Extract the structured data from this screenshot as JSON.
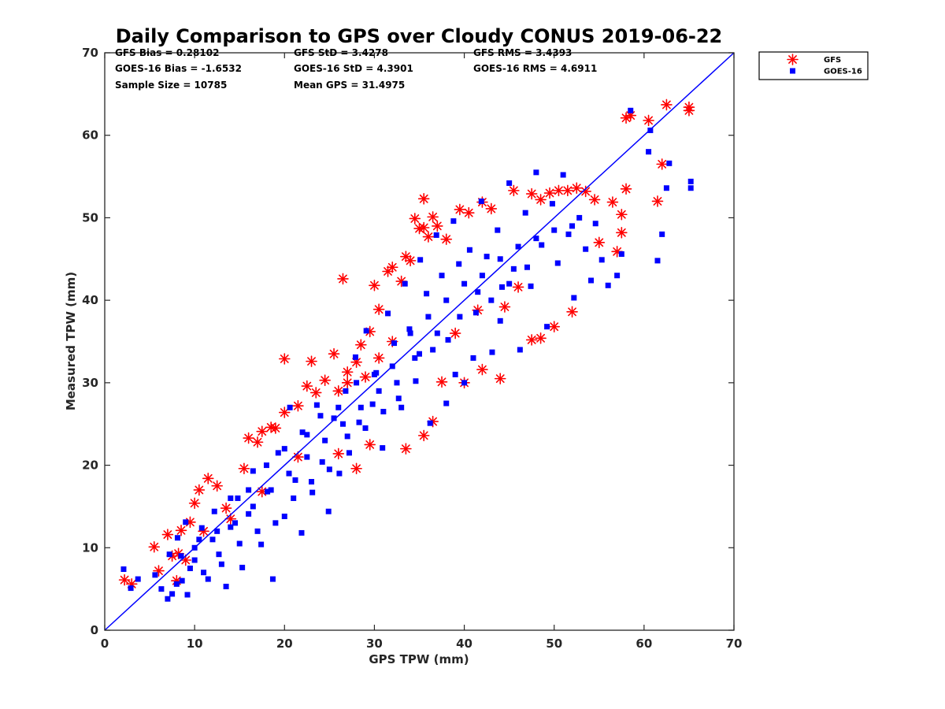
{
  "chart_data": {
    "type": "scatter",
    "title": "Daily Comparison to GPS over Cloudy CONUS 2019-06-22",
    "xlabel": "GPS TPW (mm)",
    "ylabel": "Measured TPW (mm)",
    "xlim": [
      0,
      70
    ],
    "ylim": [
      0,
      70
    ],
    "xticks": [
      0,
      10,
      20,
      30,
      40,
      50,
      60,
      70
    ],
    "yticks": [
      0,
      10,
      20,
      30,
      40,
      50,
      60,
      70
    ],
    "xtick_labels": [
      "0",
      "10",
      "20",
      "30",
      "40",
      "50",
      "60",
      "70"
    ],
    "ytick_labels": [
      "0",
      "10",
      "20",
      "30",
      "40",
      "50",
      "60",
      "70"
    ],
    "grid": false,
    "legend_position": "outside-top-right",
    "reference_line": {
      "x": [
        0,
        70
      ],
      "y": [
        0,
        70
      ],
      "color": "#0000ff"
    },
    "stats": [
      "GFS Bias = 0.28102",
      "GFS StD = 3.4278",
      "GFS RMS = 3.4393",
      "GOES-16 Bias = -1.6532",
      "GOES-16 StD = 4.3901",
      "GOES-16 RMS = 4.6911",
      "Sample Size = 10785",
      "Mean GPS = 31.4975"
    ],
    "series": [
      {
        "name": "GFS",
        "marker": "asterisk",
        "color": "#ff0000",
        "points": [
          [
            2.2,
            6.1
          ],
          [
            3.0,
            5.6
          ],
          [
            5.5,
            10.1
          ],
          [
            6.0,
            7.2
          ],
          [
            7.0,
            11.6
          ],
          [
            7.5,
            9.0
          ],
          [
            8.2,
            9.3
          ],
          [
            8.5,
            12.1
          ],
          [
            10.0,
            15.4
          ],
          [
            10.5,
            17.0
          ],
          [
            11.5,
            18.4
          ],
          [
            12.5,
            17.5
          ],
          [
            9.5,
            13.1
          ],
          [
            13.5,
            14.8
          ],
          [
            15.5,
            19.6
          ],
          [
            16.0,
            23.3
          ],
          [
            17.5,
            24.1
          ],
          [
            18.5,
            24.6
          ],
          [
            19.0,
            24.5
          ],
          [
            17.0,
            22.8
          ],
          [
            20.0,
            26.4
          ],
          [
            20.0,
            32.9
          ],
          [
            21.5,
            27.2
          ],
          [
            22.5,
            29.6
          ],
          [
            23.0,
            32.6
          ],
          [
            23.5,
            28.8
          ],
          [
            24.5,
            30.3
          ],
          [
            25.5,
            33.5
          ],
          [
            26.0,
            29.0
          ],
          [
            27.0,
            31.3
          ],
          [
            28.0,
            32.5
          ],
          [
            28.5,
            34.6
          ],
          [
            29.0,
            30.7
          ],
          [
            26.5,
            42.6
          ],
          [
            29.5,
            36.2
          ],
          [
            30.0,
            41.8
          ],
          [
            30.5,
            38.9
          ],
          [
            31.5,
            43.5
          ],
          [
            32.0,
            44.0
          ],
          [
            33.0,
            42.3
          ],
          [
            34.0,
            44.8
          ],
          [
            33.5,
            45.3
          ],
          [
            35.0,
            48.7
          ],
          [
            34.5,
            49.9
          ],
          [
            35.5,
            48.8
          ],
          [
            35.5,
            52.3
          ],
          [
            36.0,
            47.7
          ],
          [
            36.5,
            50.1
          ],
          [
            37.0,
            49.0
          ],
          [
            38.0,
            47.4
          ],
          [
            39.5,
            51.0
          ],
          [
            40.5,
            50.6
          ],
          [
            42.0,
            51.9
          ],
          [
            43.0,
            51.1
          ],
          [
            45.5,
            53.3
          ],
          [
            47.5,
            52.9
          ],
          [
            48.5,
            52.2
          ],
          [
            49.5,
            53.0
          ],
          [
            50.5,
            53.3
          ],
          [
            51.5,
            53.3
          ],
          [
            52.5,
            53.6
          ],
          [
            53.5,
            53.2
          ],
          [
            54.5,
            52.2
          ],
          [
            55.0,
            47.0
          ],
          [
            56.5,
            51.9
          ],
          [
            57.5,
            50.4
          ],
          [
            57.5,
            48.2
          ],
          [
            57.0,
            45.9
          ],
          [
            58.0,
            53.5
          ],
          [
            58.0,
            62.1
          ],
          [
            58.5,
            62.4
          ],
          [
            60.5,
            61.8
          ],
          [
            61.5,
            52.0
          ],
          [
            62.0,
            56.5
          ],
          [
            62.5,
            63.7
          ],
          [
            65.0,
            63.0
          ],
          [
            65.0,
            63.4
          ],
          [
            52.0,
            38.6
          ],
          [
            48.5,
            35.4
          ],
          [
            47.5,
            35.2
          ],
          [
            50.0,
            36.8
          ],
          [
            44.0,
            30.5
          ],
          [
            42.0,
            31.6
          ],
          [
            37.5,
            30.1
          ],
          [
            36.5,
            25.3
          ],
          [
            35.5,
            23.6
          ],
          [
            33.5,
            22.0
          ],
          [
            29.5,
            22.5
          ],
          [
            28.0,
            19.6
          ],
          [
            26.0,
            21.4
          ],
          [
            40.0,
            30.0
          ],
          [
            41.5,
            38.8
          ],
          [
            44.5,
            39.2
          ],
          [
            46.0,
            41.6
          ],
          [
            39.0,
            36.0
          ],
          [
            32.0,
            35.0
          ],
          [
            30.5,
            33.0
          ],
          [
            27.0,
            30.0
          ],
          [
            21.5,
            21.0
          ],
          [
            17.5,
            16.8
          ],
          [
            14.0,
            13.5
          ],
          [
            11.0,
            12.0
          ],
          [
            9.0,
            8.5
          ],
          [
            8.0,
            6.0
          ]
        ]
      },
      {
        "name": "GOES-16",
        "marker": "square",
        "color": "#0000ff",
        "points": [
          [
            2.1,
            7.4
          ],
          [
            2.9,
            5.1
          ],
          [
            3.7,
            6.2
          ],
          [
            5.6,
            6.7
          ],
          [
            6.3,
            5.0
          ],
          [
            7.0,
            3.8
          ],
          [
            7.5,
            4.4
          ],
          [
            8.0,
            5.6
          ],
          [
            8.6,
            6.0
          ],
          [
            9.2,
            4.3
          ],
          [
            7.2,
            9.2
          ],
          [
            8.1,
            11.2
          ],
          [
            9.0,
            13.1
          ],
          [
            10.0,
            8.5
          ],
          [
            10.8,
            12.4
          ],
          [
            11.5,
            6.2
          ],
          [
            12.2,
            14.4
          ],
          [
            12.7,
            9.2
          ],
          [
            13.5,
            5.3
          ],
          [
            14.0,
            12.5
          ],
          [
            14.8,
            16.0
          ],
          [
            15.3,
            7.6
          ],
          [
            16.0,
            14.1
          ],
          [
            16.5,
            19.3
          ],
          [
            17.4,
            10.4
          ],
          [
            18.1,
            16.8
          ],
          [
            18.7,
            6.2
          ],
          [
            19.3,
            21.5
          ],
          [
            20.0,
            13.8
          ],
          [
            20.6,
            27.0
          ],
          [
            21.2,
            18.2
          ],
          [
            21.9,
            11.8
          ],
          [
            22.5,
            23.7
          ],
          [
            23.1,
            16.7
          ],
          [
            23.6,
            27.3
          ],
          [
            24.2,
            20.4
          ],
          [
            24.9,
            14.4
          ],
          [
            25.5,
            25.7
          ],
          [
            26.1,
            19.0
          ],
          [
            26.8,
            29.0
          ],
          [
            27.2,
            21.5
          ],
          [
            27.9,
            33.1
          ],
          [
            28.3,
            25.2
          ],
          [
            29.1,
            36.3
          ],
          [
            29.8,
            27.4
          ],
          [
            30.2,
            31.2
          ],
          [
            30.9,
            22.1
          ],
          [
            31.5,
            38.4
          ],
          [
            32.2,
            34.8
          ],
          [
            32.7,
            28.1
          ],
          [
            33.4,
            42.0
          ],
          [
            33.9,
            36.5
          ],
          [
            34.6,
            30.2
          ],
          [
            35.1,
            44.9
          ],
          [
            35.8,
            40.8
          ],
          [
            36.2,
            25.1
          ],
          [
            36.9,
            47.9
          ],
          [
            37.5,
            43.0
          ],
          [
            38.2,
            35.2
          ],
          [
            38.8,
            49.6
          ],
          [
            39.4,
            44.4
          ],
          [
            40.0,
            30.0
          ],
          [
            40.6,
            46.1
          ],
          [
            41.3,
            38.5
          ],
          [
            41.9,
            52.0
          ],
          [
            42.5,
            45.3
          ],
          [
            43.1,
            33.7
          ],
          [
            43.7,
            48.5
          ],
          [
            44.2,
            41.6
          ],
          [
            45.0,
            54.2
          ],
          [
            45.5,
            43.8
          ],
          [
            46.2,
            34.0
          ],
          [
            46.8,
            50.6
          ],
          [
            47.4,
            41.7
          ],
          [
            48.0,
            55.5
          ],
          [
            48.6,
            46.7
          ],
          [
            49.2,
            36.8
          ],
          [
            49.8,
            51.7
          ],
          [
            50.4,
            44.5
          ],
          [
            51.0,
            55.2
          ],
          [
            51.6,
            48.0
          ],
          [
            52.2,
            40.3
          ],
          [
            52.8,
            50.0
          ],
          [
            53.5,
            46.2
          ],
          [
            54.1,
            42.4
          ],
          [
            54.6,
            49.3
          ],
          [
            55.3,
            44.9
          ],
          [
            56.0,
            41.8
          ],
          [
            57.0,
            43.0
          ],
          [
            57.5,
            45.6
          ],
          [
            58.5,
            63.0
          ],
          [
            60.5,
            58.0
          ],
          [
            61.5,
            44.8
          ],
          [
            62.0,
            48.0
          ],
          [
            62.5,
            53.6
          ],
          [
            62.8,
            56.6
          ],
          [
            65.2,
            54.4
          ],
          [
            65.2,
            53.6
          ],
          [
            60.7,
            60.6
          ],
          [
            38.0,
            27.5
          ],
          [
            39.0,
            31.0
          ],
          [
            41.0,
            33.0
          ],
          [
            44.0,
            37.5
          ],
          [
            35.0,
            33.5
          ],
          [
            33.0,
            27.0
          ],
          [
            31.0,
            26.5
          ],
          [
            29.0,
            24.5
          ],
          [
            27.0,
            23.5
          ],
          [
            25.0,
            19.5
          ],
          [
            23.0,
            18.0
          ],
          [
            21.0,
            16.0
          ],
          [
            19.0,
            13.0
          ],
          [
            17.0,
            12.0
          ],
          [
            15.0,
            10.5
          ],
          [
            13.0,
            8.0
          ],
          [
            11.0,
            7.0
          ],
          [
            10.0,
            10.0
          ],
          [
            12.0,
            11.0
          ],
          [
            14.0,
            16.0
          ],
          [
            16.0,
            17.0
          ],
          [
            18.0,
            20.0
          ],
          [
            20.0,
            22.0
          ],
          [
            22.0,
            24.0
          ],
          [
            24.0,
            26.0
          ],
          [
            26.0,
            27.0
          ],
          [
            28.0,
            30.0
          ],
          [
            30.0,
            31.0
          ],
          [
            32.0,
            32.0
          ],
          [
            34.0,
            36.0
          ],
          [
            36.0,
            38.0
          ],
          [
            38.0,
            40.0
          ],
          [
            40.0,
            42.0
          ],
          [
            42.0,
            43.0
          ],
          [
            44.0,
            45.0
          ],
          [
            46.0,
            46.5
          ],
          [
            48.0,
            47.5
          ],
          [
            50.0,
            48.5
          ],
          [
            52.0,
            49.0
          ],
          [
            37.0,
            36.0
          ],
          [
            43.0,
            40.0
          ],
          [
            39.5,
            38.0
          ],
          [
            41.5,
            41.0
          ],
          [
            45.0,
            42.0
          ],
          [
            47.0,
            44.0
          ],
          [
            36.5,
            34.0
          ],
          [
            34.5,
            33.0
          ],
          [
            32.5,
            30.0
          ],
          [
            30.5,
            29.0
          ],
          [
            28.5,
            27.0
          ],
          [
            26.5,
            25.0
          ],
          [
            24.5,
            23.0
          ],
          [
            22.5,
            21.0
          ],
          [
            20.5,
            19.0
          ],
          [
            18.5,
            17.0
          ],
          [
            16.5,
            15.0
          ],
          [
            14.5,
            13.0
          ],
          [
            12.5,
            12.0
          ],
          [
            10.5,
            11.0
          ],
          [
            8.5,
            9.0
          ],
          [
            9.5,
            7.5
          ]
        ]
      }
    ]
  }
}
